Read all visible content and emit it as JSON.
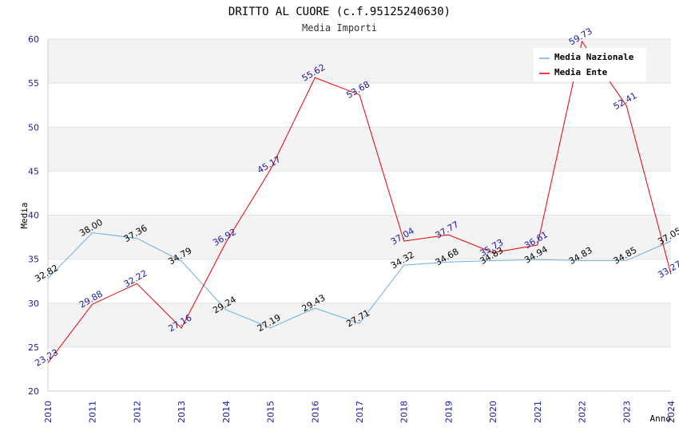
{
  "chart_data": {
    "type": "line",
    "title": "DRITTO AL CUORE (c.f.95125240630)",
    "subtitle": "Media Importi",
    "xlabel": "Anno",
    "ylabel": "Media",
    "ylim": [
      20,
      60
    ],
    "yticks": [
      20,
      25,
      30,
      35,
      40,
      45,
      50,
      55,
      60
    ],
    "x": [
      "2010",
      "2011",
      "2012",
      "2013",
      "2014",
      "2015",
      "2016",
      "2017",
      "2018",
      "2019",
      "2020",
      "2021",
      "2022",
      "2023",
      "2024"
    ],
    "series": [
      {
        "name": "Media Nazionale",
        "color": "#6aaee6",
        "values": [
          32.82,
          38.0,
          37.36,
          34.79,
          29.24,
          27.19,
          29.43,
          27.71,
          34.32,
          34.68,
          34.83,
          34.94,
          34.83,
          34.85,
          37.05
        ],
        "labels": [
          "32.82",
          "38.00",
          "37.36",
          "34.79",
          "29.24",
          "27.19",
          "29.43",
          "27.71",
          "34.32",
          "34.68",
          "34.83",
          "34.94",
          "34.83",
          "34.85",
          "37.05"
        ]
      },
      {
        "name": "Media Ente",
        "color": "#e60000",
        "values": [
          23.23,
          29.88,
          32.22,
          27.16,
          36.92,
          45.17,
          55.62,
          53.68,
          37.04,
          37.77,
          35.73,
          36.61,
          59.73,
          52.41,
          33.27
        ],
        "labels": [
          "23.23",
          "29.88",
          "32.22",
          "27.16",
          "36.92",
          "45.17",
          "55.62",
          "53.68",
          "37.04",
          "37.77",
          "35.73",
          "36.61",
          "59.73",
          "52.41",
          "33.27"
        ]
      }
    ],
    "legend": "top-right"
  }
}
